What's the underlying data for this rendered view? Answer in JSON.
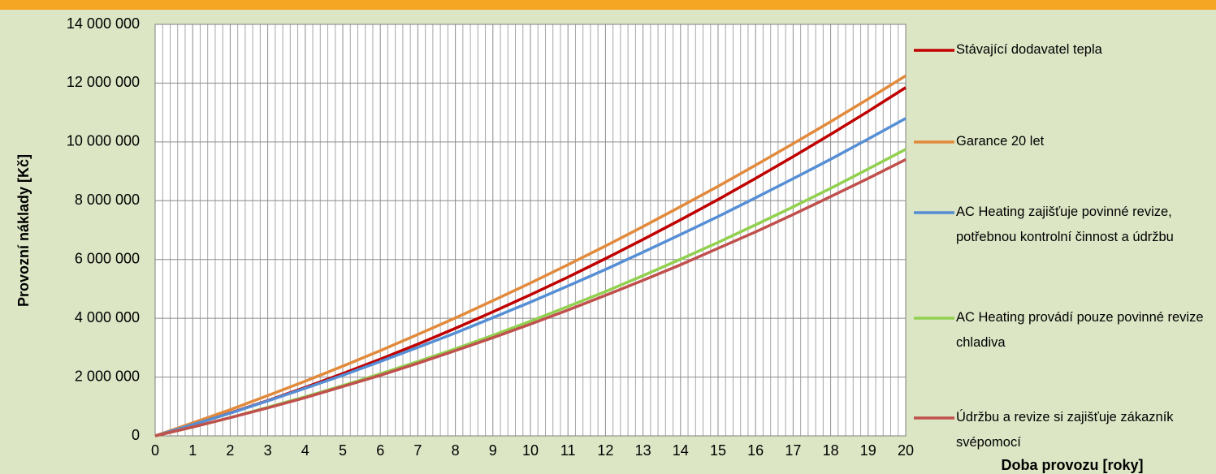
{
  "chart_data": {
    "type": "line",
    "x_label": "Doba provozu [roky]",
    "y_label": "Provozní náklady [Kč]",
    "x": [
      0,
      1,
      2,
      3,
      4,
      5,
      6,
      7,
      8,
      9,
      10,
      11,
      12,
      13,
      14,
      15,
      16,
      17,
      18,
      19,
      20
    ],
    "xlim": [
      0,
      20
    ],
    "xticks": [
      0,
      1,
      2,
      3,
      4,
      5,
      6,
      7,
      8,
      9,
      10,
      11,
      12,
      13,
      14,
      15,
      16,
      17,
      18,
      19,
      20
    ],
    "ylim": [
      0,
      14000000
    ],
    "yticks": [
      0,
      {
        "value": 2000000,
        "label": "2 000 000"
      },
      {
        "value": 4000000,
        "label": "4 000 000"
      },
      {
        "value": 6000000,
        "label": "6 000 000"
      },
      {
        "value": 8000000,
        "label": "8 000 000"
      },
      {
        "value": 10000000,
        "label": "10 000 000"
      },
      {
        "value": 12000000,
        "label": "12 000 000"
      },
      {
        "value": 14000000,
        "label": "14 000 000"
      }
    ],
    "grid": true,
    "legend": "right",
    "series": [
      {
        "name": "Stávající dodavatel tepla",
        "color": "#c00000",
        "values": [
          0,
          380000,
          780000,
          1200000,
          1650000,
          2120000,
          2610000,
          3120000,
          3660000,
          4220000,
          4800000,
          5400000,
          6030000,
          6680000,
          7350000,
          8040000,
          8760000,
          9500000,
          10260000,
          11040000,
          11850000
        ]
      },
      {
        "name": "Garance 20 let",
        "color": "#e28a3c",
        "values": [
          0,
          440000,
          890000,
          1370000,
          1860000,
          2370000,
          2900000,
          3450000,
          4010000,
          4600000,
          5200000,
          5820000,
          6460000,
          7120000,
          7800000,
          8490000,
          9210000,
          9940000,
          10690000,
          11460000,
          12250000
        ]
      },
      {
        "name": "AC Heating zajišťuje povinné revize, potřebnou kontrolní činnost a údržbu",
        "color": "#558ed5",
        "values": [
          0,
          380000,
          770000,
          1190000,
          1620000,
          2060000,
          2530000,
          3010000,
          3500000,
          4020000,
          4550000,
          5100000,
          5660000,
          6250000,
          6850000,
          7460000,
          8100000,
          8750000,
          9410000,
          10100000,
          10800000
        ]
      },
      {
        "name": "AC Heating provádí pouze povinné revize chladiva",
        "color": "#92d050",
        "values": [
          0,
          300000,
          620000,
          970000,
          1330000,
          1710000,
          2110000,
          2530000,
          2960000,
          3420000,
          3900000,
          4400000,
          4910000,
          5450000,
          6010000,
          6580000,
          7180000,
          7790000,
          8420000,
          9080000,
          9750000
        ]
      },
      {
        "name": "Údržbu a revize si zajišťuje zákazník svépomocí",
        "color": "#c0504d",
        "values": [
          0,
          300000,
          620000,
          950000,
          1300000,
          1680000,
          2060000,
          2470000,
          2900000,
          3340000,
          3800000,
          4280000,
          4780000,
          5290000,
          5820000,
          6380000,
          6940000,
          7530000,
          8140000,
          8760000,
          9400000
        ]
      }
    ]
  }
}
